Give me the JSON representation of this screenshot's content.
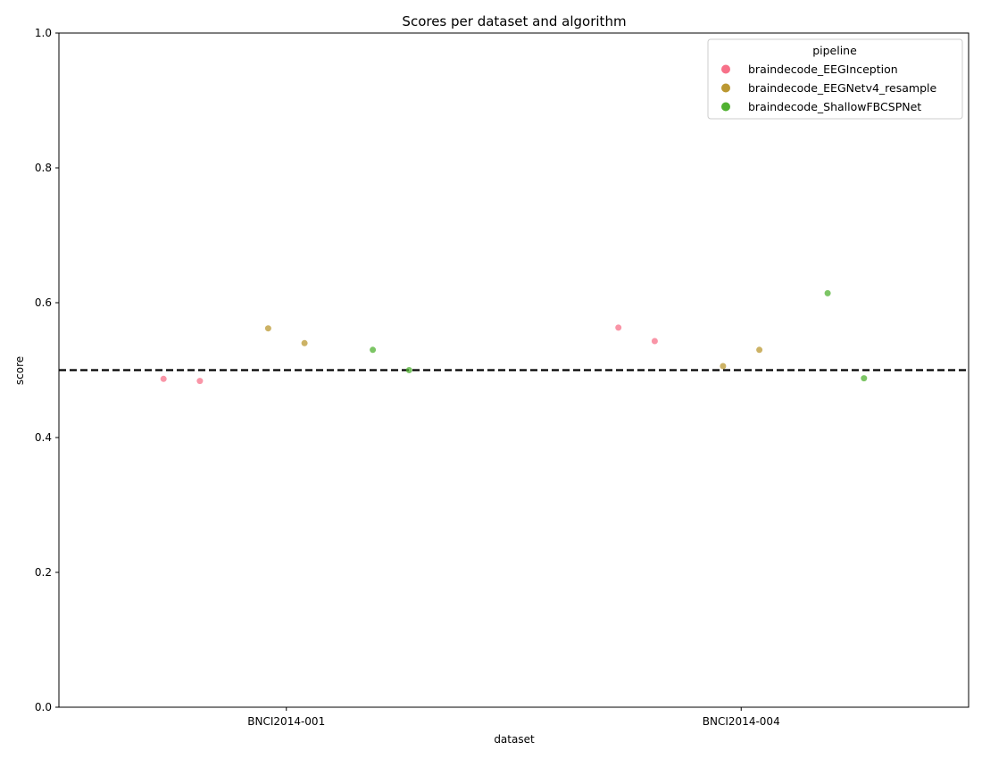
{
  "chart_data": {
    "type": "scatter",
    "title": "Scores per dataset and algorithm",
    "xlabel": "dataset",
    "ylabel": "score",
    "ylim": [
      0,
      1
    ],
    "y_ticks": [
      "0.0",
      "0.2",
      "0.4",
      "0.6",
      "0.8",
      "1.0"
    ],
    "categories": [
      "BNCI2014-001",
      "BNCI2014-004"
    ],
    "chance_level": 0.5,
    "grid": false,
    "legend": {
      "title": "pipeline",
      "position": "top-right"
    },
    "series": [
      {
        "name": "braindecode_EEGInception",
        "color": "#f77189",
        "points": [
          {
            "dataset": "BNCI2014-001",
            "score": 0.487
          },
          {
            "dataset": "BNCI2014-001",
            "score": 0.484
          },
          {
            "dataset": "BNCI2014-004",
            "score": 0.563
          },
          {
            "dataset": "BNCI2014-004",
            "score": 0.543
          }
        ]
      },
      {
        "name": "braindecode_EEGNetv4_resample",
        "color": "#bb9832",
        "points": [
          {
            "dataset": "BNCI2014-001",
            "score": 0.562
          },
          {
            "dataset": "BNCI2014-001",
            "score": 0.54
          },
          {
            "dataset": "BNCI2014-004",
            "score": 0.506
          },
          {
            "dataset": "BNCI2014-004",
            "score": 0.53
          }
        ]
      },
      {
        "name": "braindecode_ShallowFBCSPNet",
        "color": "#50b131",
        "points": [
          {
            "dataset": "BNCI2014-001",
            "score": 0.53
          },
          {
            "dataset": "BNCI2014-001",
            "score": 0.5
          },
          {
            "dataset": "BNCI2014-004",
            "score": 0.614
          },
          {
            "dataset": "BNCI2014-004",
            "score": 0.488
          }
        ]
      }
    ]
  }
}
